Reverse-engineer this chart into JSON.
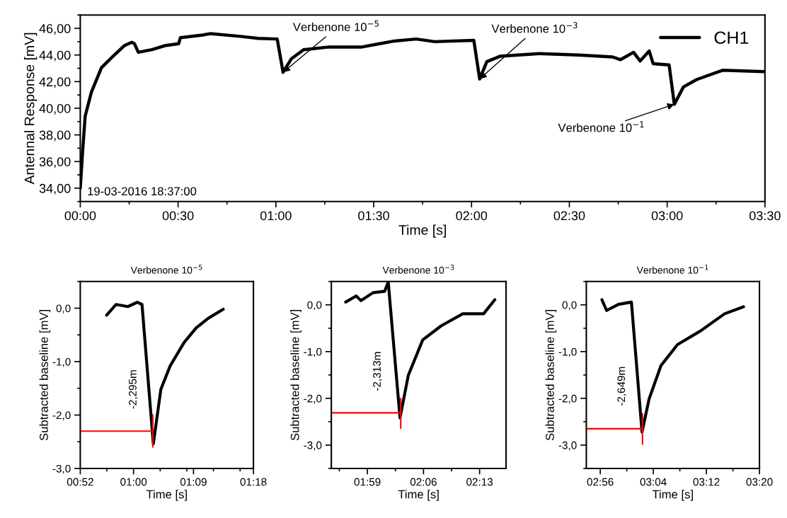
{
  "chart_data": [
    {
      "type": "line",
      "xlabel": "Time [s]",
      "ylabel": "Antennal Response [mV]",
      "xlim": [
        0,
        210
      ],
      "ylim": [
        33,
        47
      ],
      "xticks": [
        {
          "value": 0,
          "label": "00:00"
        },
        {
          "value": 30,
          "label": "00:30"
        },
        {
          "value": 60,
          "label": "01:00"
        },
        {
          "value": 90,
          "label": "01:30"
        },
        {
          "value": 120,
          "label": "02:00"
        },
        {
          "value": 150,
          "label": "02:30"
        },
        {
          "value": 180,
          "label": "03:00"
        },
        {
          "value": 210,
          "label": "03:30"
        }
      ],
      "yticks": [
        {
          "value": 34,
          "label": "34,00"
        },
        {
          "value": 36,
          "label": "36,00"
        },
        {
          "value": 38,
          "label": "38,00"
        },
        {
          "value": 40,
          "label": "40,00"
        },
        {
          "value": 42,
          "label": "42,00"
        },
        {
          "value": 44,
          "label": "44,00"
        },
        {
          "value": 46,
          "label": "46,00"
        }
      ],
      "legend": "top right",
      "grid": false,
      "series": [
        {
          "name": "CH1",
          "color": "#000000",
          "x": [
            0,
            0.7,
            1.5,
            3.4,
            6.5,
            9.6,
            13.5,
            15.8,
            16.6,
            17.8,
            22,
            25.9,
            30.2,
            30.7,
            37.5,
            39.8,
            49.1,
            54.6,
            60.4,
            62.2,
            64.7,
            68.5,
            76.3,
            86.4,
            91.8,
            96.4,
            103,
            108.7,
            120.7,
            122.5,
            124.7,
            128.7,
            140.8,
            152.8,
            163.3,
            165.7,
            169.7,
            171.7,
            174.5,
            175.7,
            180.6,
            182.2,
            185,
            189,
            197,
            209.9
          ],
          "values": [
            34.0,
            36.7,
            39.4,
            41.2,
            43.05,
            43.8,
            44.7,
            44.95,
            44.85,
            44.2,
            44.4,
            44.7,
            44.85,
            45.3,
            45.5,
            45.6,
            45.4,
            45.25,
            45.2,
            42.7,
            43.7,
            44.4,
            44.6,
            44.6,
            44.85,
            45.05,
            45.2,
            45.0,
            45.1,
            42.2,
            43.5,
            43.9,
            44.1,
            44.0,
            43.85,
            43.65,
            44.2,
            43.55,
            44.3,
            43.35,
            43.25,
            40.3,
            41.6,
            42.15,
            42.85,
            42.75
          ]
        }
      ],
      "annotations": [
        {
          "text": "Verbenone 10$^{−5}$",
          "x": 62.2,
          "y": 42.7
        },
        {
          "text": "Verbenone 10$^{−3}$",
          "x": 122.5,
          "y": 42.2
        },
        {
          "text": "Verbenone 10$^{−1}$",
          "x": 182.2,
          "y": 40.3
        },
        "19-03-2016 18:37:00"
      ]
    },
    {
      "type": "line",
      "title": "Verbenone 10$^{−5}$",
      "xlabel": "Time [s]",
      "ylabel": "Subtracted baseline [mV]",
      "xlim": [
        52,
        78
      ],
      "ylim": [
        -3,
        0.5
      ],
      "xticks": [
        {
          "value": 52,
          "label": "00:52"
        },
        {
          "value": 60,
          "label": "01:00"
        },
        {
          "value": 69,
          "label": "01:09"
        },
        {
          "value": 78,
          "label": "01:18"
        }
      ],
      "yticks": [
        {
          "value": -3,
          "label": "-3,0"
        },
        {
          "value": -2,
          "label": "-2,0"
        },
        {
          "value": -1,
          "label": "-1,0"
        },
        {
          "value": 0,
          "label": "0,0"
        }
      ],
      "grid": false,
      "series": [
        {
          "color": "#000000",
          "x": [
            55.96,
            57.38,
            59.14,
            60.56,
            61.27,
            62.97,
            64.1,
            65.5,
            67.6,
            69.4,
            71.2,
            73.47
          ],
          "values": [
            -0.13,
            0.07,
            0.03,
            0.11,
            0.07,
            -2.54,
            -1.52,
            -1.08,
            -0.64,
            -0.37,
            -0.19,
            -0.02
          ]
        },
        {
          "color": "#ff0000",
          "x": [
            52,
            62.9,
            62.9,
            62.9
          ],
          "values": [
            -2.3,
            -2.3,
            -2.0,
            -2.6
          ]
        }
      ],
      "annotations": [
        "-2,295m"
      ]
    },
    {
      "type": "line",
      "title": "Verbenone 10$^{−3}$",
      "xlabel": "Time [s]",
      "ylabel": "Subtracted baseline [mV]",
      "xlim": [
        114.5,
        136.3
      ],
      "ylim": [
        -3.5,
        0.5
      ],
      "xticks": [
        {
          "value": 119,
          "label": "01:59"
        },
        {
          "value": 126,
          "label": "02:06"
        },
        {
          "value": 133,
          "label": "02:13"
        }
      ],
      "yticks": [
        {
          "value": -3,
          "label": "-3,0"
        },
        {
          "value": -2,
          "label": "-2,0"
        },
        {
          "value": -1,
          "label": "-1,0"
        },
        {
          "value": 0,
          "label": "0,0"
        }
      ],
      "grid": false,
      "series": [
        {
          "color": "#000000",
          "x": [
            116.29,
            117.6,
            118.2,
            119.7,
            121.15,
            121.6,
            123.07,
            124.1,
            125.9,
            128.2,
            130.9,
            133.5,
            134.9
          ],
          "values": [
            0.06,
            0.19,
            0.09,
            0.26,
            0.29,
            0.49,
            -2.42,
            -1.51,
            -0.75,
            -0.45,
            -0.19,
            -0.19,
            0.11
          ]
        },
        {
          "color": "#ff0000",
          "x": [
            114.5,
            123.16,
            123.16,
            123.16
          ],
          "values": [
            -2.31,
            -2.31,
            -2.0,
            -2.64
          ]
        }
      ],
      "annotations": [
        "-2,313m"
      ]
    },
    {
      "type": "line",
      "title": "Verbenone 10$^{−1}$",
      "xlabel": "Time [s]",
      "ylabel": "Subtracted baseline [mV]",
      "xlim": [
        173.9,
        200
      ],
      "ylim": [
        -3.5,
        0.5
      ],
      "xticks": [
        {
          "value": 176,
          "label": "02:56"
        },
        {
          "value": 184,
          "label": "03:04"
        },
        {
          "value": 192,
          "label": "03:12"
        },
        {
          "value": 200,
          "label": "03:20"
        }
      ],
      "yticks": [
        {
          "value": -3,
          "label": "-3,0"
        },
        {
          "value": -2,
          "label": "-2,0"
        },
        {
          "value": -1,
          "label": "-1,0"
        },
        {
          "value": 0,
          "label": "0,0"
        }
      ],
      "grid": false,
      "series": [
        {
          "color": "#000000",
          "x": [
            176.25,
            176.96,
            178.74,
            180.7,
            182.3,
            183.37,
            185.15,
            187.64,
            191.2,
            194.75,
            197.6
          ],
          "values": [
            0.11,
            -0.12,
            0.01,
            0.06,
            -2.72,
            -2.01,
            -1.3,
            -0.85,
            -0.55,
            -0.19,
            -0.04
          ]
        },
        {
          "color": "#ff0000",
          "x": [
            173.9,
            182.37,
            182.37,
            182.37
          ],
          "values": [
            -2.65,
            -2.65,
            -2.33,
            -2.98
          ]
        }
      ],
      "annotations": [
        "-2,649m"
      ]
    }
  ]
}
